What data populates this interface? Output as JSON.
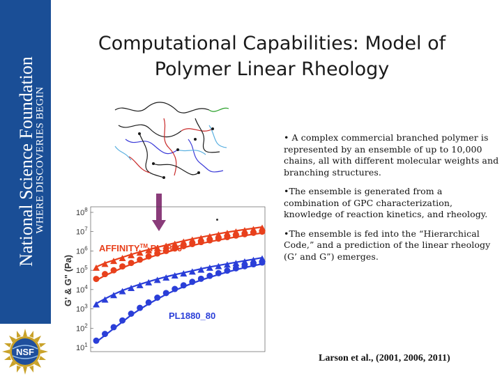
{
  "sidebar": {
    "organization": "National Science Foundation",
    "tagline": "WHERE DISCOVERIES BEGIN",
    "logo_text": "NSF",
    "color": "#1a4e96"
  },
  "title": {
    "line1": "Computational Capabilities: Model of",
    "line2": "Polymer Linear Rheology"
  },
  "bullets": [
    "• A complex commercial branched polymer is represented by an ensemble of up to 10,000 chains, all with different molecular weights and branching structures.",
    "•The ensemble is generated from a combination of GPC characterization, knowledge of reaction kinetics, and rheology.",
    "•The ensemble is fed into the “Hierarchical Code,” and a prediction of the linear rheology (G’ and G”) emerges."
  ],
  "citation": "Larson et al., (2001, 2006, 2011)",
  "chart_data": {
    "type": "scatter",
    "ylabel": "G' & G\" (Pa)",
    "y_scale": "log",
    "ylim_exp": [
      1,
      8
    ],
    "ytick_labels": [
      "10",
      "10",
      "10",
      "10",
      "10",
      "10",
      "10",
      "10"
    ],
    "ytick_exponents": [
      "1",
      "2",
      "3",
      "4",
      "5",
      "6",
      "7",
      "8"
    ],
    "annotation_red": "AFFINITY",
    "annotation_red_sup": "TM",
    "annotation_red_suffix": " PL1880",
    "annotation_blue": "PL1880_80",
    "series": [
      {
        "marker": "triangle",
        "color": "#e8401c",
        "log10_y": [
          5.1,
          5.3,
          5.45,
          5.6,
          5.75,
          5.88,
          6.0,
          6.12,
          6.23,
          6.34,
          6.45,
          6.55,
          6.64,
          6.73,
          6.82,
          6.9,
          6.97,
          7.04,
          7.1,
          7.17
        ]
      },
      {
        "marker": "circle",
        "color": "#e8401c",
        "log10_y": [
          4.55,
          4.8,
          5.0,
          5.2,
          5.38,
          5.55,
          5.72,
          5.87,
          6.0,
          6.13,
          6.25,
          6.36,
          6.46,
          6.55,
          6.64,
          6.72,
          6.8,
          6.87,
          6.94,
          7.0
        ]
      },
      {
        "marker": "triangle",
        "color": "#2a3ed8",
        "log10_y": [
          3.2,
          3.45,
          3.68,
          3.88,
          4.05,
          4.2,
          4.34,
          4.47,
          4.59,
          4.7,
          4.8,
          4.9,
          5.0,
          5.1,
          5.18,
          5.26,
          5.34,
          5.42,
          5.5,
          5.58
        ]
      },
      {
        "marker": "circle",
        "color": "#2a3ed8",
        "log10_y": [
          1.35,
          1.7,
          2.05,
          2.4,
          2.75,
          3.05,
          3.33,
          3.58,
          3.82,
          4.03,
          4.22,
          4.4,
          4.56,
          4.71,
          4.85,
          4.98,
          5.1,
          5.21,
          5.31,
          5.4
        ]
      }
    ]
  }
}
